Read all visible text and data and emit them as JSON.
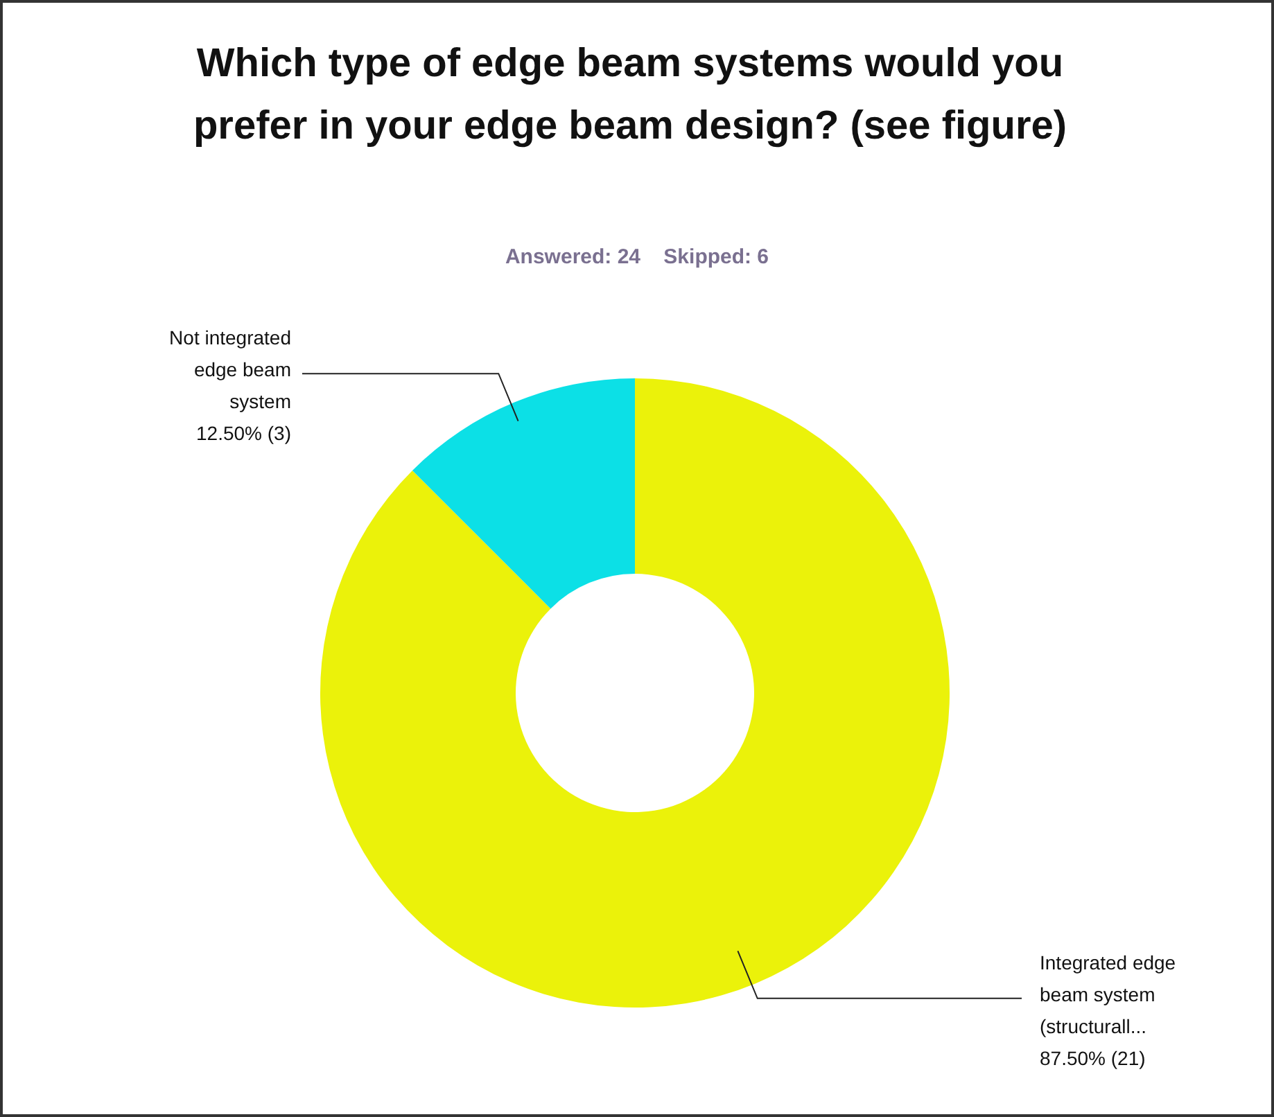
{
  "chart_data": {
    "type": "donut",
    "title": "Which type of edge beam systems would you prefer in your edge beam design? (see figure)",
    "subtitle": "Answered: 24    Skipped: 6",
    "categories": [
      "Integrated edge beam system (structurall...",
      "Not integrated edge beam system"
    ],
    "values": [
      21,
      3
    ],
    "colors": [
      "#ebf20a",
      "#0ce0e6"
    ],
    "value_labels": [
      "87.50% (21)",
      "12.50% (3)"
    ],
    "legend": false
  }
}
